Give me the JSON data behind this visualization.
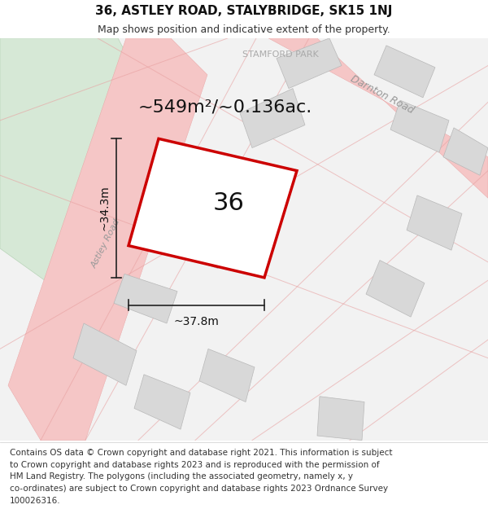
{
  "title": "36, ASTLEY ROAD, STALYBRIDGE, SK15 1NJ",
  "subtitle": "Map shows position and indicative extent of the property.",
  "title_fontsize": 11,
  "subtitle_fontsize": 9,
  "bg_color": "#ffffff",
  "footer_fontsize": 7.5,
  "area_text": "~549m²/~0.136ac.",
  "area_fontsize": 16,
  "number_text": "36",
  "number_fontsize": 22,
  "dim_h_text": "~37.8m",
  "dim_v_text": "~34.3m",
  "dim_fontsize": 10,
  "road_label_astley": "Astley Road",
  "road_label_darnton": "Darnton Road",
  "road_label_stamford": "STAMFORD PARK",
  "park_color": "#d6e8d6",
  "road_color": "#f5c6c6",
  "road_outline": "#e8a0a0",
  "building_color": "#d8d8d8",
  "building_outline": "#b8b8b8",
  "plot_outline": "#cc0000",
  "plot_lw": 2.5,
  "footer_lines": [
    "Contains OS data © Crown copyright and database right 2021. This information is subject",
    "to Crown copyright and database rights 2023 and is reproduced with the permission of",
    "HM Land Registry. The polygons (including the associated geometry, namely x, y",
    "co-ordinates) are subject to Crown copyright and database rights 2023 Ordnance Survey",
    "100026316."
  ]
}
